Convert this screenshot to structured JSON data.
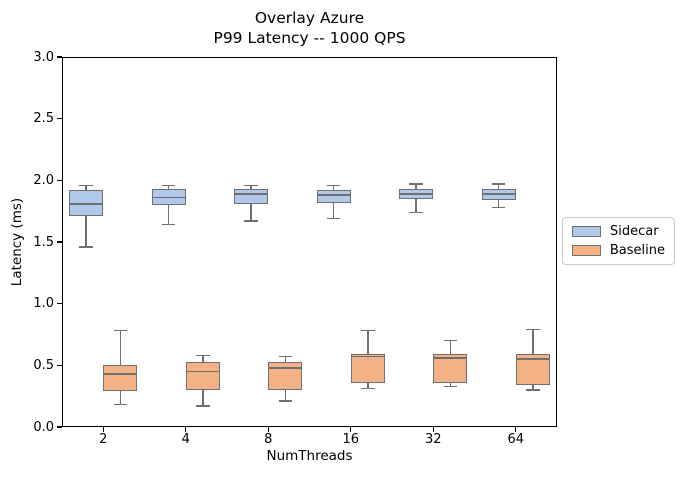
{
  "figure": {
    "title_line1": "Overlay Azure",
    "title_line2": "P99 Latency -- 1000 QPS"
  },
  "chart_data": {
    "type": "boxplot",
    "title": "Overlay Azure\nP99 Latency -- 1000 QPS",
    "xlabel": "NumThreads",
    "ylabel": "Latency (ms)",
    "ylim": [
      0.0,
      3.0
    ],
    "yticks": [
      0.0,
      0.5,
      1.0,
      1.5,
      2.0,
      2.5,
      3.0
    ],
    "ytick_labels": [
      "0.0",
      "0.5",
      "1.0",
      "1.5",
      "2.0",
      "2.5",
      "3.0"
    ],
    "categories": [
      "2",
      "4",
      "8",
      "16",
      "32",
      "64"
    ],
    "grid": false,
    "legend": {
      "position": "center-right-outside",
      "entries": [
        "Sidecar",
        "Baseline"
      ]
    },
    "colors": {
      "sidecar_fill": "#b0c9e8",
      "baseline_fill": "#f2b285",
      "box_edge": "#6f6f6f",
      "spine": "#000000",
      "legend_border": "#cccccc"
    },
    "series": [
      {
        "name": "Sidecar",
        "fill": "#b0c9e8",
        "boxes": [
          {
            "whislo": 1.46,
            "q1": 1.71,
            "med": 1.81,
            "q3": 1.92,
            "whishi": 1.96
          },
          {
            "whislo": 1.64,
            "q1": 1.8,
            "med": 1.86,
            "q3": 1.93,
            "whishi": 1.96
          },
          {
            "whislo": 1.67,
            "q1": 1.81,
            "med": 1.89,
            "q3": 1.93,
            "whishi": 1.96
          },
          {
            "whislo": 1.69,
            "q1": 1.82,
            "med": 1.88,
            "q3": 1.92,
            "whishi": 1.96
          },
          {
            "whislo": 1.74,
            "q1": 1.85,
            "med": 1.89,
            "q3": 1.93,
            "whishi": 1.97
          },
          {
            "whislo": 1.78,
            "q1": 1.84,
            "med": 1.89,
            "q3": 1.93,
            "whishi": 1.97
          }
        ]
      },
      {
        "name": "Baseline",
        "fill": "#f2b285",
        "boxes": [
          {
            "whislo": 0.18,
            "q1": 0.29,
            "med": 0.43,
            "q3": 0.5,
            "whishi": 0.78
          },
          {
            "whislo": 0.17,
            "q1": 0.3,
            "med": 0.45,
            "q3": 0.53,
            "whishi": 0.58
          },
          {
            "whislo": 0.21,
            "q1": 0.3,
            "med": 0.48,
            "q3": 0.53,
            "whishi": 0.57
          },
          {
            "whislo": 0.31,
            "q1": 0.36,
            "med": 0.57,
            "q3": 0.59,
            "whishi": 0.78
          },
          {
            "whislo": 0.33,
            "q1": 0.36,
            "med": 0.56,
            "q3": 0.59,
            "whishi": 0.7
          },
          {
            "whislo": 0.3,
            "q1": 0.34,
            "med": 0.55,
            "q3": 0.59,
            "whishi": 0.79
          }
        ]
      }
    ]
  }
}
